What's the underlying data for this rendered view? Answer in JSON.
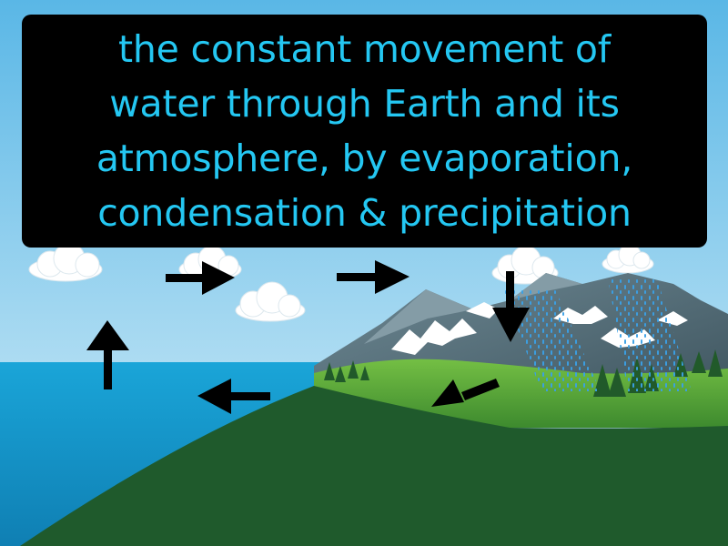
{
  "definition": {
    "lines": [
      "the constant movement of",
      "water through Earth and its",
      "atmosphere, by evaporation,",
      "condensation & precipitation"
    ]
  },
  "colors": {
    "definition_text": "#24c7f2",
    "definition_box": "#000000",
    "sky_top": "#5ab7e6",
    "sky_bottom": "#d6eef8",
    "ocean": "#1898cc",
    "land_dark": "#1f5a2c",
    "meadow": "#56a93a",
    "mountain": "#55707c",
    "snow": "#ffffff",
    "rain": "#3aa0e6",
    "arrow": "#000000"
  },
  "icons": [
    "cloud-icon",
    "mountain-icon",
    "tree-icon",
    "rain-icon",
    "arrow-up-icon",
    "arrow-right-icon",
    "arrow-down-icon",
    "arrow-down-left-icon",
    "arrow-left-icon"
  ]
}
